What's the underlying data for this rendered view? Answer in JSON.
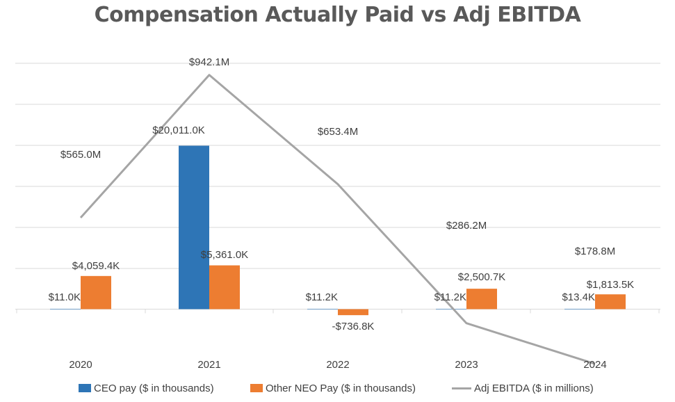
{
  "chart_data": {
    "type": "bar",
    "title": "Compensation Actually Paid vs Adj EBITDA",
    "categories": [
      "2020",
      "2021",
      "2022",
      "2023",
      "2024"
    ],
    "series": [
      {
        "name": "CEO pay ($ in thousands)",
        "kind": "bar",
        "color": "#2E75B6",
        "values": [
          11.0,
          20011.0,
          11.2,
          11.2,
          13.4
        ],
        "labels": [
          "$11.0K",
          "$20,011.0K",
          "$11.2K",
          "$11.2K",
          "$13.4K"
        ]
      },
      {
        "name": "Other NEO Pay ($ in thousands)",
        "kind": "bar",
        "color": "#ED7D31",
        "values": [
          4059.4,
          5361.0,
          -736.8,
          2500.7,
          1813.5
        ],
        "labels": [
          "$4,059.4K",
          "$5,361.0K",
          "-$736.8K",
          "$2,500.7K",
          "$1,813.5K"
        ]
      },
      {
        "name": "Adj EBITDA ($ in millions)",
        "kind": "line",
        "color": "#A5A5A5",
        "values": [
          565.0,
          942.1,
          653.4,
          286.2,
          178.8
        ],
        "labels": [
          "$565.0M",
          "$942.1M",
          "$653.4M",
          "$286.2M",
          "$178.8M"
        ]
      }
    ],
    "bar_axis_ylim": [
      -2000,
      22000
    ],
    "line_axis_ylim": [
      -50,
      1150
    ],
    "grid": true,
    "legend_position": "bottom"
  }
}
